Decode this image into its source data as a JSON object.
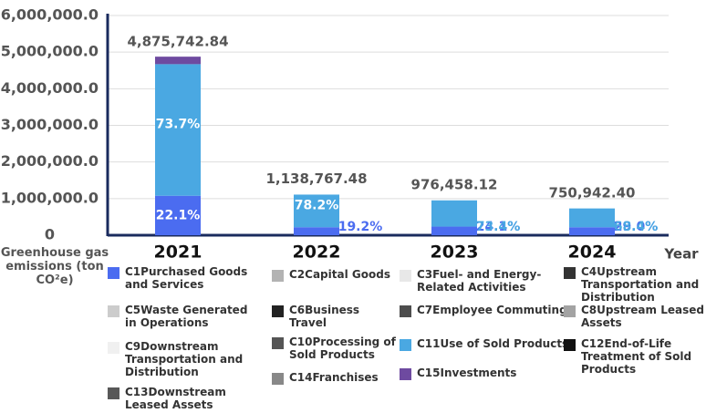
{
  "chart_data": {
    "type": "stacked_bar",
    "y_label": "Greenhouse gas emissions (ton CO²e)",
    "x_label": "Year",
    "categories": [
      "2021",
      "2022",
      "2023",
      "2024"
    ],
    "ylim": [
      0,
      6000000
    ],
    "yticks": [
      0,
      {
        "value": 1000000,
        "label": "1,000,000.0"
      },
      {
        "value": 2000000,
        "label": "2,000,000.0"
      },
      {
        "value": 3000000,
        "label": "3,000,000.0"
      },
      {
        "value": 4000000,
        "label": "4,000,000.0"
      },
      {
        "value": 5000000,
        "label": "5,000,000.0"
      },
      {
        "value": 6000000,
        "label": "6,000,000.0"
      }
    ],
    "grid": true,
    "totals": [
      4875742.84,
      1138767.48,
      976458.12,
      750942.4
    ],
    "total_labels": [
      "4,875,742.84",
      "1,138,767.48",
      "976,458.12",
      "750,942.40"
    ],
    "series": [
      {
        "name": "C1Purchased Goods and Services",
        "color": "#4b6cf0",
        "values": [
          1077539,
          218643,
          235326,
          217773
        ],
        "share_labels": [
          "22.1%",
          "19.2%",
          "24.1%",
          "29.0%"
        ]
      },
      {
        "name": "C2Capital Goods",
        "color": "#b3b3b3",
        "values": [
          null,
          null,
          null,
          null
        ]
      },
      {
        "name": "C3Fuel- and Energy-Related Activities",
        "color": "#e8e8e8",
        "values": [
          null,
          null,
          null,
          null
        ]
      },
      {
        "name": "C4Upstream Transportation and Distribution",
        "color": "#333333",
        "values": [
          null,
          null,
          null,
          null
        ]
      },
      {
        "name": "C5Waste Generated in Operations",
        "color": "#cccccc",
        "values": [
          null,
          null,
          null,
          null
        ]
      },
      {
        "name": "C6Business Travel",
        "color": "#222222",
        "values": [
          null,
          null,
          null,
          null
        ]
      },
      {
        "name": "C7Employee Commuting",
        "color": "#4d4d4d",
        "values": [
          null,
          null,
          null,
          null
        ]
      },
      {
        "name": "C8Upstream Leased Assets",
        "color": "#a3a3a3",
        "values": [
          null,
          null,
          null,
          null
        ]
      },
      {
        "name": "C9Downstream Transportation and Distribution",
        "color": "#f0f0f0",
        "values": [
          null,
          null,
          null,
          null
        ]
      },
      {
        "name": "C10Processing of Sold Products",
        "color": "#555555",
        "values": [
          null,
          null,
          null,
          null
        ]
      },
      {
        "name": "C11Use of Sold Products",
        "color": "#4aa8e2",
        "values": [
          3593422,
          890516,
          716720,
          513644
        ],
        "share_labels": [
          "73.7%",
          "78.2%",
          "73.4%",
          "68.4%"
        ]
      },
      {
        "name": "C12End-of-Life Treatment of Sold Products",
        "color": "#111111",
        "values": [
          null,
          null,
          null,
          null
        ]
      },
      {
        "name": "C13Downstream Leased Assets",
        "color": "#585858",
        "values": [
          null,
          null,
          null,
          null
        ]
      },
      {
        "name": "C14Franchises",
        "color": "#888888",
        "values": [
          null,
          null,
          null,
          null
        ]
      },
      {
        "name": "C15Investments",
        "color": "#6e4aa0",
        "values": [
          204782,
          null,
          null,
          null
        ]
      }
    ]
  }
}
